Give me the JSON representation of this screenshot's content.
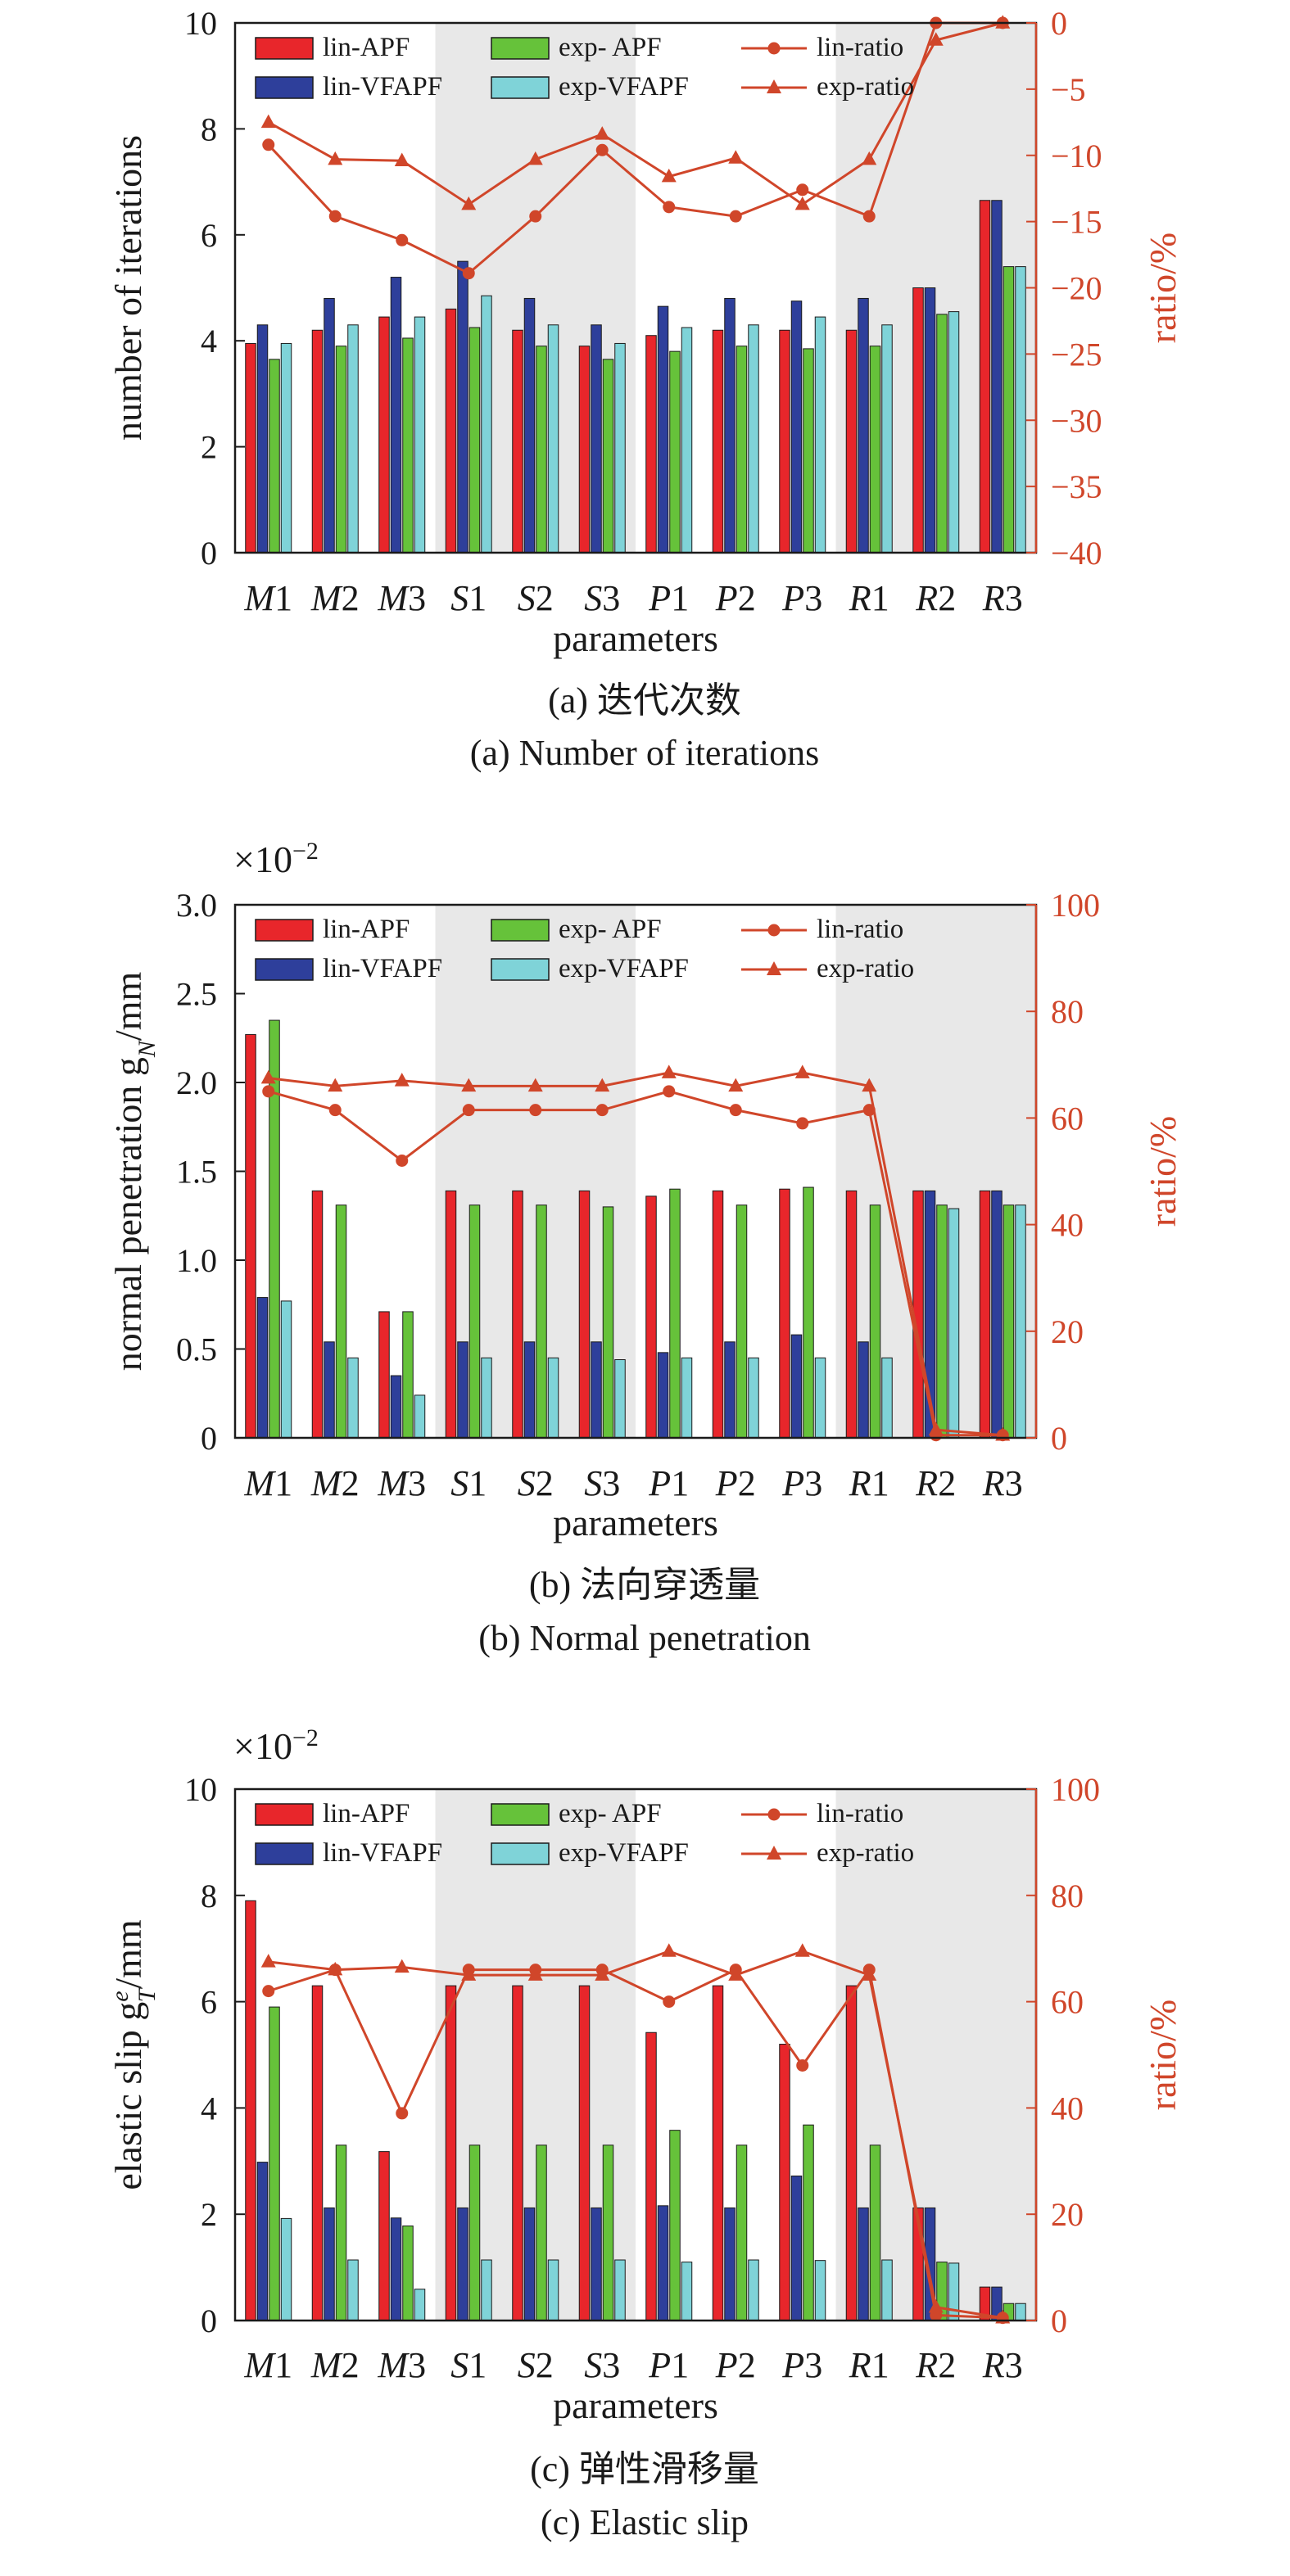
{
  "colors": {
    "lin_APF": "#e8262b",
    "lin_VFAPF": "#2e3f9b",
    "exp_APF": "#66c23a",
    "exp_VFAPF": "#7fd3d8",
    "ratio": "#d0462a",
    "shade": "#e8e8e8",
    "axis": "#1a1a1a"
  },
  "chart_data": [
    {
      "type": "bar",
      "panel": "a",
      "categories": [
        "M1",
        "M2",
        "M3",
        "S1",
        "S2",
        "S3",
        "P1",
        "P2",
        "P3",
        "R1",
        "R2",
        "R3"
      ],
      "category_letters": [
        "M",
        "M",
        "M",
        "S",
        "S",
        "S",
        "P",
        "P",
        "P",
        "R",
        "R",
        "R"
      ],
      "category_numbers": [
        "1",
        "2",
        "3",
        "1",
        "2",
        "3",
        "1",
        "2",
        "3",
        "1",
        "2",
        "3"
      ],
      "series": [
        {
          "name": "lin-APF",
          "values": [
            3.95,
            4.2,
            4.45,
            4.6,
            4.2,
            3.9,
            4.1,
            4.2,
            4.2,
            4.2,
            5.0,
            6.65
          ]
        },
        {
          "name": "lin-VFAPF",
          "values": [
            4.3,
            4.8,
            5.2,
            5.5,
            4.8,
            4.3,
            4.65,
            4.8,
            4.75,
            4.8,
            5.0,
            6.65
          ]
        },
        {
          "name": "exp- APF",
          "values": [
            3.65,
            3.9,
            4.05,
            4.25,
            3.9,
            3.65,
            3.8,
            3.9,
            3.85,
            3.9,
            4.5,
            5.4
          ]
        },
        {
          "name": "exp-VFAPF",
          "values": [
            3.95,
            4.3,
            4.45,
            4.85,
            4.3,
            3.95,
            4.25,
            4.3,
            4.45,
            4.3,
            4.55,
            5.4
          ]
        }
      ],
      "ratio_series": [
        {
          "name": "lin-ratio",
          "values": [
            -9.2,
            -14.6,
            -16.4,
            -18.9,
            -14.6,
            -9.6,
            -13.9,
            -14.6,
            -12.6,
            -14.6,
            0,
            0
          ]
        },
        {
          "name": "exp-ratio",
          "values": [
            -7.5,
            -10.3,
            -10.4,
            -13.7,
            -10.3,
            -8.4,
            -11.6,
            -10.2,
            -13.7,
            -10.3,
            -1.3,
            0
          ]
        }
      ],
      "ylabel": "number of iterations",
      "ylim": [
        0,
        10
      ],
      "yticks": [
        "0",
        "2",
        "4",
        "6",
        "8",
        "10"
      ],
      "y2label": "ratio/%",
      "y2lim": [
        -40,
        0
      ],
      "y2ticks": [
        "−40",
        "−35",
        "−30",
        "−25",
        "−20",
        "−15",
        "−10",
        "−5",
        "0"
      ],
      "exponent_label": "",
      "xlabel": "parameters",
      "caption_cn": "(a) 迭代次数",
      "caption_en": "(a) Number of iterations",
      "legend": [
        "lin-APF",
        "lin-VFAPF",
        "exp- APF",
        "exp-VFAPF",
        "lin-ratio",
        "exp-ratio"
      ],
      "shaded_groups": [
        "S",
        "R"
      ]
    },
    {
      "type": "bar",
      "panel": "b",
      "categories": [
        "M1",
        "M2",
        "M3",
        "S1",
        "S2",
        "S3",
        "P1",
        "P2",
        "P3",
        "R1",
        "R2",
        "R3"
      ],
      "category_letters": [
        "M",
        "M",
        "M",
        "S",
        "S",
        "S",
        "P",
        "P",
        "P",
        "R",
        "R",
        "R"
      ],
      "category_numbers": [
        "1",
        "2",
        "3",
        "1",
        "2",
        "3",
        "1",
        "2",
        "3",
        "1",
        "2",
        "3"
      ],
      "series": [
        {
          "name": "lin-APF",
          "values": [
            2.27,
            1.39,
            0.71,
            1.39,
            1.39,
            1.39,
            1.36,
            1.39,
            1.4,
            1.39,
            1.39,
            1.39
          ]
        },
        {
          "name": "lin-VFAPF",
          "values": [
            0.79,
            0.54,
            0.35,
            0.54,
            0.54,
            0.54,
            0.48,
            0.54,
            0.58,
            0.54,
            1.39,
            1.39
          ]
        },
        {
          "name": "exp- APF",
          "values": [
            2.35,
            1.31,
            0.71,
            1.31,
            1.31,
            1.3,
            1.4,
            1.31,
            1.41,
            1.31,
            1.31,
            1.31
          ]
        },
        {
          "name": "exp-VFAPF",
          "values": [
            0.77,
            0.45,
            0.24,
            0.45,
            0.45,
            0.44,
            0.45,
            0.45,
            0.45,
            0.45,
            1.29,
            1.31
          ]
        }
      ],
      "ratio_series": [
        {
          "name": "lin-ratio",
          "values": [
            65,
            61.5,
            52,
            61.5,
            61.5,
            61.5,
            65,
            61.5,
            59,
            61.5,
            0.5,
            0.5
          ]
        },
        {
          "name": "exp-ratio",
          "values": [
            67.5,
            66,
            67,
            66,
            66,
            66,
            68.5,
            66,
            68.5,
            66,
            1.5,
            0.5
          ]
        }
      ],
      "ylabel": "normal penetration g",
      "ylabel_sub": "N",
      "ylabel_unit": "/mm",
      "ylim": [
        0,
        3.0
      ],
      "yticks": [
        "0",
        "0.5",
        "1.0",
        "1.5",
        "2.0",
        "2.5",
        "3.0"
      ],
      "y2label": "ratio/%",
      "y2lim": [
        0,
        100
      ],
      "y2ticks": [
        "0",
        "20",
        "40",
        "60",
        "80",
        "100"
      ],
      "exponent_base": "×10",
      "exponent_power": "−2",
      "xlabel": "parameters",
      "caption_cn": "(b) 法向穿透量",
      "caption_en": "(b) Normal penetration",
      "legend": [
        "lin-APF",
        "lin-VFAPF",
        "exp- APF",
        "exp-VFAPF",
        "lin-ratio",
        "exp-ratio"
      ],
      "shaded_groups": [
        "S",
        "R"
      ]
    },
    {
      "type": "bar",
      "panel": "c",
      "categories": [
        "M1",
        "M2",
        "M3",
        "S1",
        "S2",
        "S3",
        "P1",
        "P2",
        "P3",
        "R1",
        "R2",
        "R3"
      ],
      "category_letters": [
        "M",
        "M",
        "M",
        "S",
        "S",
        "S",
        "P",
        "P",
        "P",
        "R",
        "R",
        "R"
      ],
      "category_numbers": [
        "1",
        "2",
        "3",
        "1",
        "2",
        "3",
        "1",
        "2",
        "3",
        "1",
        "2",
        "3"
      ],
      "series": [
        {
          "name": "lin-APF",
          "values": [
            7.9,
            6.3,
            3.18,
            6.3,
            6.3,
            6.3,
            5.42,
            6.3,
            5.2,
            6.3,
            2.12,
            0.63
          ]
        },
        {
          "name": "lin-VFAPF",
          "values": [
            2.98,
            2.12,
            1.93,
            2.12,
            2.12,
            2.12,
            2.16,
            2.12,
            2.72,
            2.12,
            2.12,
            0.63
          ]
        },
        {
          "name": "exp- APF",
          "values": [
            5.9,
            3.3,
            1.78,
            3.3,
            3.3,
            3.3,
            3.58,
            3.3,
            3.68,
            3.3,
            1.1,
            0.32
          ]
        },
        {
          "name": "exp-VFAPF",
          "values": [
            1.92,
            1.14,
            0.59,
            1.14,
            1.14,
            1.14,
            1.1,
            1.14,
            1.13,
            1.14,
            1.08,
            0.32
          ]
        }
      ],
      "ratio_series": [
        {
          "name": "lin-ratio",
          "values": [
            62,
            66,
            39,
            66,
            66,
            66,
            60,
            66,
            48,
            66,
            1,
            0.5
          ]
        },
        {
          "name": "exp-ratio",
          "values": [
            67.5,
            66,
            66.5,
            65,
            65,
            65,
            69.5,
            65,
            69.5,
            65,
            2.5,
            0.5
          ]
        }
      ],
      "ylabel": "elastic slip g",
      "ylabel_sub": "T",
      "ylabel_sup": "e",
      "ylabel_unit": "/mm",
      "ylim": [
        0,
        10
      ],
      "yticks": [
        "0",
        "2",
        "4",
        "6",
        "8",
        "10"
      ],
      "y2label": "ratio/%",
      "y2lim": [
        0,
        100
      ],
      "y2ticks": [
        "0",
        "20",
        "40",
        "60",
        "80",
        "100"
      ],
      "exponent_base": "×10",
      "exponent_power": "−2",
      "xlabel": "parameters",
      "caption_cn": "(c) 弹性滑移量",
      "caption_en": "(c) Elastic slip",
      "legend": [
        "lin-APF",
        "lin-VFAPF",
        "exp- APF",
        "exp-VFAPF",
        "lin-ratio",
        "exp-ratio"
      ],
      "shaded_groups": [
        "S",
        "R"
      ]
    }
  ]
}
